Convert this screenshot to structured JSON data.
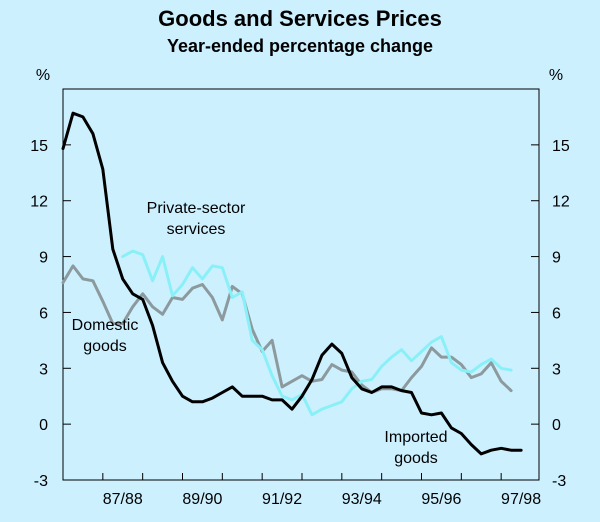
{
  "chart_data": {
    "type": "line",
    "title": "Goods and Services Prices",
    "subtitle": "Year-ended percentage change",
    "y_unit_label": "%",
    "ylim": [
      -3,
      18
    ],
    "yticks": [
      -3,
      0,
      3,
      6,
      9,
      12,
      15
    ],
    "xlim": [
      1986.0,
      1997.95
    ],
    "x_tick_labels": [
      {
        "label": "87/88",
        "x": 1987.5
      },
      {
        "label": "89/90",
        "x": 1989.5
      },
      {
        "label": "91/92",
        "x": 1991.5
      },
      {
        "label": "93/94",
        "x": 1993.5
      },
      {
        "label": "95/96",
        "x": 1995.5
      },
      {
        "label": "97/98",
        "x": 1997.5
      }
    ],
    "x_tick_marks": [
      1987.0,
      1988.0,
      1989.0,
      1990.0,
      1991.0,
      1992.0,
      1993.0,
      1994.0,
      1995.0,
      1996.0,
      1997.0
    ],
    "annotations": [
      {
        "series": "private",
        "lines": [
          "Private-sector",
          "services"
        ]
      },
      {
        "series": "domestic",
        "lines": [
          "Domestic",
          "goods"
        ]
      },
      {
        "series": "imported",
        "lines": [
          "Imported",
          "goods"
        ]
      }
    ],
    "series": [
      {
        "key": "imported",
        "name": "Imported goods",
        "color": "#000000",
        "x": [
          1986.0,
          1986.25,
          1986.5,
          1986.75,
          1987.0,
          1987.25,
          1987.5,
          1987.75,
          1988.0,
          1988.25,
          1988.5,
          1988.75,
          1989.0,
          1989.25,
          1989.5,
          1989.75,
          1990.0,
          1990.25,
          1990.5,
          1990.75,
          1991.0,
          1991.25,
          1991.5,
          1991.75,
          1992.0,
          1992.25,
          1992.5,
          1992.75,
          1993.0,
          1993.25,
          1993.5,
          1993.75,
          1994.0,
          1994.25,
          1994.5,
          1994.75,
          1995.0,
          1995.25,
          1995.5,
          1995.75,
          1996.0,
          1996.25,
          1996.5,
          1996.75,
          1997.0,
          1997.25,
          1997.5
        ],
        "values": [
          14.8,
          16.7,
          16.5,
          15.6,
          13.7,
          9.4,
          7.8,
          7.0,
          6.7,
          5.3,
          3.3,
          2.3,
          1.5,
          1.2,
          1.2,
          1.4,
          1.7,
          2.0,
          1.5,
          1.5,
          1.5,
          1.3,
          1.3,
          0.8,
          1.5,
          2.4,
          3.7,
          4.3,
          3.8,
          2.5,
          1.9,
          1.7,
          2.0,
          2.0,
          1.8,
          1.7,
          0.6,
          0.5,
          0.6,
          -0.2,
          -0.5,
          -1.1,
          -1.6,
          -1.4,
          -1.3,
          -1.4,
          -1.4
        ]
      },
      {
        "key": "domestic",
        "name": "Domestic goods",
        "color": "#8c9a9e",
        "x": [
          1986.0,
          1986.25,
          1986.5,
          1986.75,
          1987.0,
          1987.25,
          1987.5,
          1987.75,
          1988.0,
          1988.25,
          1988.5,
          1988.75,
          1989.0,
          1989.25,
          1989.5,
          1989.75,
          1990.0,
          1990.25,
          1990.5,
          1990.75,
          1991.0,
          1991.25,
          1991.5,
          1991.75,
          1992.0,
          1992.25,
          1992.5,
          1992.75,
          1993.0,
          1993.25,
          1993.5,
          1993.75,
          1994.0,
          1994.25,
          1994.5,
          1994.75,
          1995.0,
          1995.25,
          1995.5,
          1995.75,
          1996.0,
          1996.25,
          1996.5,
          1996.75,
          1997.0,
          1997.25
        ],
        "values": [
          7.6,
          8.5,
          7.8,
          7.7,
          6.6,
          5.4,
          5.4,
          6.3,
          7.0,
          6.3,
          5.9,
          6.8,
          6.7,
          7.3,
          7.5,
          6.8,
          5.6,
          7.4,
          7.0,
          5.1,
          3.9,
          4.5,
          2.0,
          2.3,
          2.6,
          2.3,
          2.4,
          3.2,
          2.9,
          2.8,
          2.1,
          1.7,
          1.9,
          1.9,
          1.8,
          2.5,
          3.1,
          4.1,
          3.6,
          3.6,
          3.2,
          2.5,
          2.7,
          3.3,
          2.3,
          1.8
        ]
      },
      {
        "key": "private",
        "name": "Private-sector services",
        "color": "#8af0f8",
        "x": [
          1987.5,
          1987.75,
          1988.0,
          1988.25,
          1988.5,
          1988.75,
          1989.0,
          1989.25,
          1989.5,
          1989.75,
          1990.0,
          1990.25,
          1990.5,
          1990.75,
          1991.0,
          1991.25,
          1991.5,
          1991.75,
          1992.0,
          1992.25,
          1992.5,
          1992.75,
          1993.0,
          1993.25,
          1993.5,
          1993.75,
          1994.0,
          1994.25,
          1994.5,
          1994.75,
          1995.0,
          1995.25,
          1995.5,
          1995.75,
          1996.0,
          1996.25,
          1996.5,
          1996.75,
          1997.0,
          1997.25
        ],
        "values": [
          9.0,
          9.3,
          9.1,
          7.7,
          9.0,
          6.9,
          7.5,
          8.4,
          7.8,
          8.5,
          8.4,
          6.8,
          7.1,
          4.5,
          4.0,
          2.6,
          1.5,
          1.3,
          1.6,
          0.5,
          0.8,
          1.0,
          1.2,
          1.9,
          2.3,
          2.4,
          3.1,
          3.6,
          4.0,
          3.4,
          3.9,
          4.4,
          4.7,
          3.3,
          2.9,
          2.8,
          3.2,
          3.5,
          3.0,
          2.9
        ]
      }
    ]
  }
}
